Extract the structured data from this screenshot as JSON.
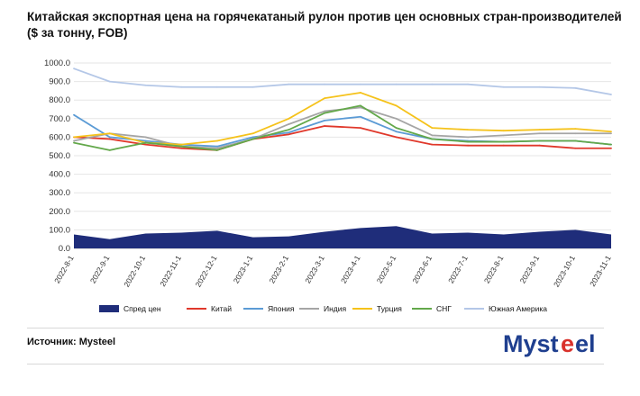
{
  "title": "Китайская экспортная цена на горячекатаный рулон против цен основных стран-производителей ($ за тонну, FOB)",
  "source": "Источник: Mysteel",
  "logo_text": "Mysteel",
  "colors": {
    "spread": "#1f2d7a",
    "china": "#e0382b",
    "japan": "#5b9bd5",
    "india": "#a5a5a5",
    "turkey": "#f5c21a",
    "cis": "#63a84a",
    "south_america": "#b4c7e7",
    "logo_blue": "#1f3f8f",
    "logo_red": "#d9312b"
  },
  "chart_data": {
    "type": "line",
    "title": "Китайская экспортная цена на горячекатаный рулон против цен основных стран-производителей ($ за тонну, FOB)",
    "ylim": [
      0,
      1000
    ],
    "yticks": [
      "0.0",
      "100.0",
      "200.0",
      "300.0",
      "400.0",
      "500.0",
      "600.0",
      "700.0",
      "800.0",
      "900.0",
      "1000.0"
    ],
    "x": [
      "2022-8-1",
      "2022-9-1",
      "2022-10-1",
      "2022-11-1",
      "2022-12-1",
      "2023-1-1",
      "2023-2-1",
      "2023-3-1",
      "2023-4-1",
      "2023-5-1",
      "2023-6-1",
      "2023-7-1",
      "2023-8-1",
      "2023-9-1",
      "2023-10-1",
      "2023-11-1"
    ],
    "legend_position": "bottom",
    "series": [
      {
        "name": "Спред цен",
        "type": "area",
        "color": "#1f2d7a",
        "values": [
          75,
          50,
          80,
          85,
          95,
          60,
          65,
          90,
          110,
          120,
          80,
          85,
          75,
          90,
          100,
          75
        ]
      },
      {
        "name": "Китай",
        "color": "#e0382b",
        "values": [
          600,
          590,
          560,
          540,
          530,
          590,
          615,
          660,
          650,
          600,
          560,
          555,
          555,
          555,
          540,
          540
        ]
      },
      {
        "name": "Япония",
        "color": "#5b9bd5",
        "values": [
          720,
          600,
          580,
          560,
          550,
          600,
          625,
          690,
          710,
          630,
          590,
          580,
          575,
          580,
          580,
          560
        ]
      },
      {
        "name": "Индия",
        "color": "#a5a5a5",
        "values": [
          580,
          620,
          600,
          550,
          540,
          590,
          670,
          740,
          760,
          700,
          610,
          600,
          610,
          620,
          620,
          620
        ]
      },
      {
        "name": "Турция",
        "color": "#f5c21a",
        "values": [
          600,
          620,
          570,
          560,
          580,
          620,
          700,
          810,
          840,
          770,
          650,
          640,
          635,
          640,
          645,
          630
        ]
      },
      {
        "name": "СНГ",
        "color": "#63a84a",
        "values": [
          570,
          530,
          570,
          550,
          530,
          590,
          640,
          730,
          770,
          650,
          590,
          575,
          575,
          580,
          580,
          560
        ]
      },
      {
        "name": "Южная Америка",
        "color": "#b4c7e7",
        "values": [
          970,
          900,
          880,
          870,
          870,
          870,
          885,
          885,
          885,
          885,
          885,
          885,
          870,
          870,
          865,
          830
        ]
      }
    ]
  }
}
